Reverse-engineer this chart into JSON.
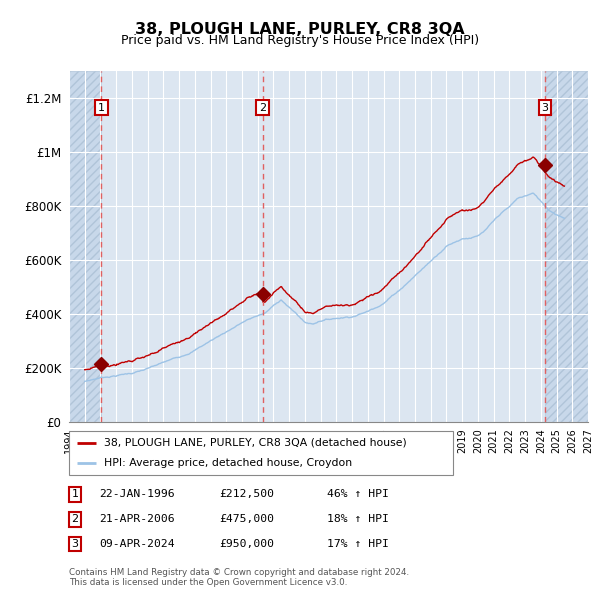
{
  "title": "38, PLOUGH LANE, PURLEY, CR8 3QA",
  "subtitle": "Price paid vs. HM Land Registry's House Price Index (HPI)",
  "xlim": [
    1994,
    2027
  ],
  "ylim": [
    0,
    1300000
  ],
  "yticks": [
    0,
    200000,
    400000,
    600000,
    800000,
    1000000,
    1200000
  ],
  "ytick_labels": [
    "£0",
    "£200K",
    "£400K",
    "£600K",
    "£800K",
    "£1M",
    "£1.2M"
  ],
  "xticks": [
    1994,
    1995,
    1996,
    1997,
    1998,
    1999,
    2000,
    2001,
    2002,
    2003,
    2004,
    2005,
    2006,
    2007,
    2008,
    2009,
    2010,
    2011,
    2012,
    2013,
    2014,
    2015,
    2016,
    2017,
    2018,
    2019,
    2020,
    2021,
    2022,
    2023,
    2024,
    2025,
    2026,
    2027
  ],
  "sale_dates": [
    1996.06,
    2006.31,
    2024.27
  ],
  "sale_prices": [
    212500,
    475000,
    950000
  ],
  "sale_labels": [
    "1",
    "2",
    "3"
  ],
  "legend_red_label": "38, PLOUGH LANE, PURLEY, CR8 3QA (detached house)",
  "legend_blue_label": "HPI: Average price, detached house, Croydon",
  "table_rows": [
    {
      "num": "1",
      "date": "22-JAN-1996",
      "price": "£212,500",
      "hpi": "46% ↑ HPI"
    },
    {
      "num": "2",
      "date": "21-APR-2006",
      "price": "£475,000",
      "hpi": "18% ↑ HPI"
    },
    {
      "num": "3",
      "date": "09-APR-2024",
      "price": "£950,000",
      "hpi": "17% ↑ HPI"
    }
  ],
  "footnote": "Contains HM Land Registry data © Crown copyright and database right 2024.\nThis data is licensed under the Open Government Licence v3.0.",
  "bg_color": "#ffffff",
  "plot_bg_color": "#dce6f1",
  "hatch_region_color": "#c8d8ea",
  "grid_color": "#ffffff",
  "red_line_color": "#c00000",
  "blue_line_color": "#9dc3e6",
  "sale_marker_color": "#8b0000",
  "dashed_line_color": "#e06060",
  "hatch_color": "#b0c4d8"
}
